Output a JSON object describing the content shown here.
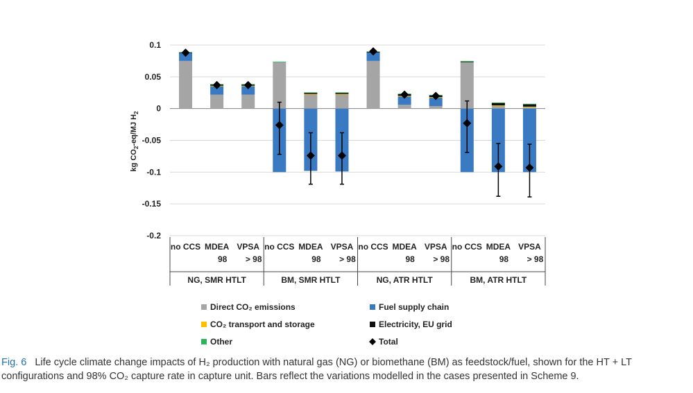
{
  "chart_data": {
    "type": "bar",
    "stacked": true,
    "ylabel": "kg CO2-eq/MJ H2",
    "ylim": [
      -0.2,
      0.1
    ],
    "yticks": [
      "0.1",
      "0.05",
      "0",
      "-0.05",
      "-0.1",
      "-0.15",
      "-0.2"
    ],
    "grid": true,
    "legend_position": "bottom",
    "categories": [
      "no CCS",
      "MDEA 98",
      "VPSA > 98",
      "no CCS",
      "MDEA 98",
      "VPSA > 98",
      "no CCS",
      "MDEA 98",
      "VPSA > 98",
      "no CCS",
      "MDEA 98",
      "VPSA > 98"
    ],
    "category_lines": [
      [
        "no CCS",
        ""
      ],
      [
        "MDEA",
        "98"
      ],
      [
        "VPSA",
        "> 98"
      ],
      [
        "no CCS",
        ""
      ],
      [
        "MDEA",
        "98"
      ],
      [
        "VPSA",
        "> 98"
      ],
      [
        "no CCS",
        ""
      ],
      [
        "MDEA",
        "98"
      ],
      [
        "VPSA",
        "> 98"
      ],
      [
        "no CCS",
        ""
      ],
      [
        "MDEA",
        "98"
      ],
      [
        "VPSA",
        "> 98"
      ]
    ],
    "groups": [
      "NG, SMR HTLT",
      "BM, SMR HTLT",
      "NG, ATR HTLT",
      "BM, ATR HTLT"
    ],
    "series": [
      {
        "name": "Direct CO₂ emissions",
        "color": "#a5a5a5",
        "values": [
          0.075,
          0.022,
          0.022,
          0.073,
          0.022,
          0.022,
          0.075,
          0.006,
          0.004,
          0.073,
          0.004,
          0.002
        ]
      },
      {
        "name": "Fuel supply chain",
        "color": "#3a7ac2",
        "values": [
          0.013,
          0.013,
          0.013,
          -0.1,
          -0.098,
          -0.099,
          0.013,
          0.013,
          0.013,
          -0.1,
          -0.1,
          -0.1
        ]
      },
      {
        "name": "CO₂ transport and storage",
        "color": "#ffc000",
        "values": [
          0,
          0.001,
          0.001,
          0,
          0.001,
          0.001,
          0,
          0.001,
          0.001,
          0,
          0.001,
          0.001
        ]
      },
      {
        "name": "Electricity, EU grid",
        "color": "#111111",
        "values": [
          0.0005,
          0.002,
          0.002,
          0,
          0.002,
          0.002,
          0.001,
          0.003,
          0.003,
          0.001,
          0.004,
          0.004
        ]
      },
      {
        "name": "Other",
        "color": "#2bb35a",
        "values": [
          0.0005,
          0.0005,
          0.0005,
          0.001,
          0.0005,
          0.0005,
          0.001,
          0.0005,
          0.0005,
          0.001,
          0.0005,
          0.0005
        ]
      }
    ],
    "total": {
      "name": "Total",
      "values": [
        0.088,
        0.037,
        0.037,
        -0.026,
        -0.074,
        -0.074,
        0.09,
        0.022,
        0.02,
        -0.023,
        -0.091,
        -0.093
      ],
      "err_low": [
        null,
        null,
        null,
        -0.072,
        -0.119,
        -0.119,
        null,
        null,
        null,
        -0.069,
        -0.138,
        -0.139
      ],
      "err_high": [
        null,
        null,
        null,
        0.01,
        -0.038,
        -0.038,
        null,
        null,
        null,
        0.012,
        -0.055,
        -0.056
      ]
    }
  },
  "legend": [
    {
      "label": "Direct CO₂ emissions",
      "color": "#a5a5a5",
      "marker": "square"
    },
    {
      "label": "Fuel supply chain",
      "color": "#3a7ac2",
      "marker": "square"
    },
    {
      "label": "CO₂ transport and storage",
      "color": "#ffc000",
      "marker": "square"
    },
    {
      "label": "Electricity, EU grid",
      "color": "#111111",
      "marker": "square"
    },
    {
      "label": "Other",
      "color": "#2bb35a",
      "marker": "square"
    },
    {
      "label": "Total",
      "color": "#000000",
      "marker": "diamond"
    }
  ],
  "caption": {
    "fig_label": "Fig. 6",
    "text": "Life cycle climate change impacts of H₂ production with natural gas (NG) or biomethane (BM) as feedstock/fuel, shown for the HT + LT configurations and 98% CO₂ capture rate in capture unit. Bars reflect the variations modelled in the cases presented in Scheme 9."
  }
}
